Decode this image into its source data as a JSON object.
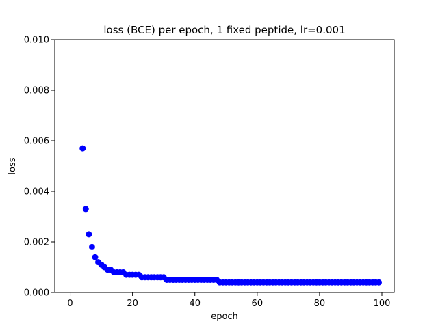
{
  "chart_data": {
    "type": "scatter",
    "title": "loss (BCE) per epoch, 1 fixed peptide, lr=0.001",
    "xlabel": "epoch",
    "ylabel": "loss",
    "xlim": [
      -4.95,
      103.95
    ],
    "ylim": [
      0,
      0.01
    ],
    "xticks": [
      0,
      20,
      40,
      60,
      80,
      100
    ],
    "xtick_labels": [
      "0",
      "20",
      "40",
      "60",
      "80",
      "100"
    ],
    "yticks": [
      0.0,
      0.002,
      0.004,
      0.006,
      0.008,
      0.01
    ],
    "ytick_labels": [
      "0.000",
      "0.002",
      "0.004",
      "0.006",
      "0.008",
      "0.010"
    ],
    "grid": false,
    "marker_color": "#0000ff",
    "x": [
      4,
      5,
      6,
      7,
      8,
      9,
      10,
      11,
      12,
      13,
      14,
      15,
      16,
      17,
      18,
      19,
      20,
      21,
      22,
      23,
      24,
      25,
      26,
      27,
      28,
      29,
      30,
      31,
      32,
      33,
      34,
      35,
      36,
      37,
      38,
      39,
      40,
      41,
      42,
      43,
      44,
      45,
      46,
      47,
      48,
      49,
      50,
      51,
      52,
      53,
      54,
      55,
      56,
      57,
      58,
      59,
      60,
      61,
      62,
      63,
      64,
      65,
      66,
      67,
      68,
      69,
      70,
      71,
      72,
      73,
      74,
      75,
      76,
      77,
      78,
      79,
      80,
      81,
      82,
      83,
      84,
      85,
      86,
      87,
      88,
      89,
      90,
      91,
      92,
      93,
      94,
      95,
      96,
      97,
      98,
      99
    ],
    "y": [
      0.0057,
      0.0033,
      0.0023,
      0.0018,
      0.0014,
      0.0012,
      0.0011,
      0.001,
      0.0009,
      0.0009,
      0.0008,
      0.0008,
      0.0008,
      0.0008,
      0.0007,
      0.0007,
      0.0007,
      0.0007,
      0.0007,
      0.0006,
      0.0006,
      0.0006,
      0.0006,
      0.0006,
      0.0006,
      0.0006,
      0.0006,
      0.0005,
      0.0005,
      0.0005,
      0.0005,
      0.0005,
      0.0005,
      0.0005,
      0.0005,
      0.0005,
      0.0005,
      0.0005,
      0.0005,
      0.0005,
      0.0005,
      0.0005,
      0.0005,
      0.0005,
      0.0004,
      0.0004,
      0.0004,
      0.0004,
      0.0004,
      0.0004,
      0.0004,
      0.0004,
      0.0004,
      0.0004,
      0.0004,
      0.0004,
      0.0004,
      0.0004,
      0.0004,
      0.0004,
      0.0004,
      0.0004,
      0.0004,
      0.0004,
      0.0004,
      0.0004,
      0.0004,
      0.0004,
      0.0004,
      0.0004,
      0.0004,
      0.0004,
      0.0004,
      0.0004,
      0.0004,
      0.0004,
      0.0004,
      0.0004,
      0.0004,
      0.0004,
      0.0004,
      0.0004,
      0.0004,
      0.0004,
      0.0004,
      0.0004,
      0.0004,
      0.0004,
      0.0004,
      0.0004,
      0.0004,
      0.0004,
      0.0004,
      0.0004,
      0.0004,
      0.0004
    ]
  }
}
